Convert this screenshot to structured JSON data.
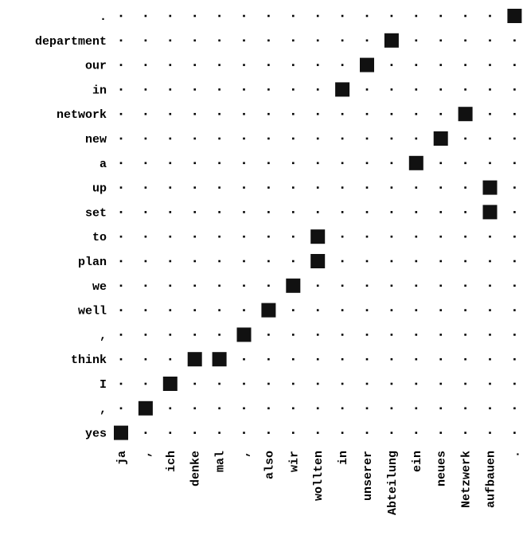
{
  "alignment": {
    "source_words": [
      "ja",
      ",",
      "ich",
      "denke",
      "mal",
      ",",
      "also",
      "wir",
      "wollten",
      "in",
      "unserer",
      "Abteilung",
      "ein",
      "neues",
      "Netzwerk",
      "aufbauen",
      "."
    ],
    "target_words": [
      ".",
      "department",
      "our",
      "in",
      "network",
      "new",
      "a",
      "up",
      "set",
      "to",
      "plan",
      "we",
      "well",
      ",",
      "think",
      "I",
      ",",
      "yes"
    ],
    "links": [
      {
        "source": ".",
        "target": "."
      },
      {
        "source": "Abteilung",
        "target": "department"
      },
      {
        "source": "unserer",
        "target": "our"
      },
      {
        "source": "in",
        "target": "in"
      },
      {
        "source": "Netzwerk",
        "target": "network"
      },
      {
        "source": "neues",
        "target": "new"
      },
      {
        "source": "ein",
        "target": "a"
      },
      {
        "source": "aufbauen",
        "target": "up"
      },
      {
        "source": "aufbauen",
        "target": "set"
      },
      {
        "source": "wollten",
        "target": "to"
      },
      {
        "source": "wollten",
        "target": "plan"
      },
      {
        "source": "wir",
        "target": "we"
      },
      {
        "source": "also",
        "target": "well"
      },
      {
        "source": ",",
        "source_index": 5,
        "target": ","
      },
      {
        "source": "denke",
        "target": "think"
      },
      {
        "source": "mal",
        "target": "think"
      },
      {
        "source": "ich",
        "target": "I"
      },
      {
        "source": ",",
        "source_index": 1,
        "target": ",",
        "target_index": 16
      },
      {
        "source": "ja",
        "target": "yes"
      }
    ],
    "link_cells": [
      [
        0,
        16
      ],
      [
        1,
        11
      ],
      [
        2,
        10
      ],
      [
        3,
        9
      ],
      [
        4,
        14
      ],
      [
        5,
        13
      ],
      [
        6,
        12
      ],
      [
        7,
        15
      ],
      [
        8,
        15
      ],
      [
        9,
        8
      ],
      [
        10,
        8
      ],
      [
        11,
        7
      ],
      [
        12,
        6
      ],
      [
        13,
        5
      ],
      [
        14,
        3
      ],
      [
        14,
        4
      ],
      [
        15,
        2
      ],
      [
        16,
        1
      ],
      [
        17,
        0
      ]
    ],
    "colors": {
      "mark": "#111111",
      "dot": "#000000",
      "text": "#000000",
      "background": "#ffffff"
    }
  }
}
